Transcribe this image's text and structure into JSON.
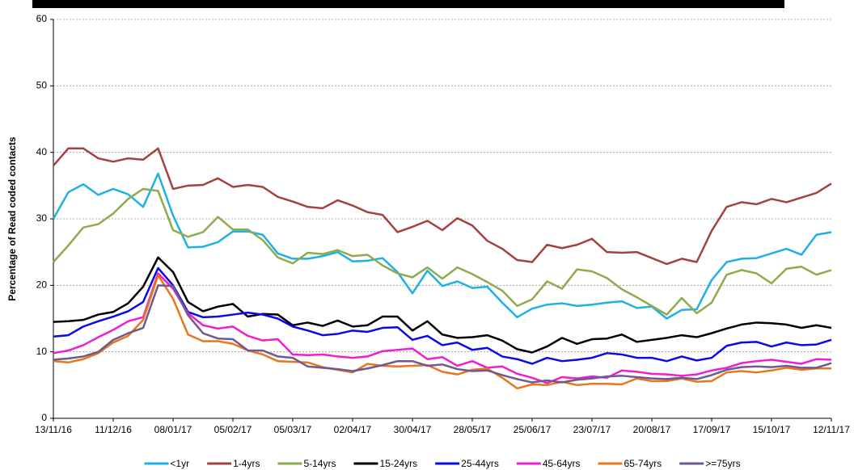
{
  "chart_data": {
    "type": "line",
    "y_label": "Percentage of Read coded contacts",
    "categories": [
      "13/11/16",
      null,
      null,
      null,
      "11/12/16",
      null,
      null,
      null,
      "08/01/17",
      null,
      null,
      null,
      "05/02/17",
      null,
      null,
      null,
      "05/03/17",
      null,
      null,
      null,
      "02/04/17",
      null,
      null,
      null,
      "30/04/17",
      null,
      null,
      null,
      "28/05/17",
      null,
      null,
      null,
      "25/06/17",
      null,
      null,
      null,
      "23/07/17",
      null,
      null,
      null,
      "20/08/17",
      null,
      null,
      null,
      "17/09/17",
      null,
      null,
      null,
      "15/10/17",
      null,
      null,
      null,
      "12/11/17"
    ],
    "ylim": [
      0,
      60
    ],
    "yticks": [
      0,
      10,
      20,
      30,
      40,
      50,
      60
    ],
    "grid": true,
    "legend": "bottom",
    "series": [
      {
        "name": "<1yr",
        "color": "#1fb0e6",
        "values": [
          30.0,
          34.0,
          35.2,
          33.6,
          34.5,
          33.7,
          31.8,
          36.8,
          30.5,
          25.7,
          25.8,
          26.5,
          28.1,
          28.1,
          27.6,
          24.8,
          24.0,
          24.0,
          24.4,
          25.0,
          23.6,
          23.7,
          24.1,
          22.0,
          18.8,
          22.2,
          19.9,
          20.6,
          19.6,
          19.8,
          17.4,
          15.2,
          16.5,
          17.1,
          17.3,
          16.9,
          17.1,
          17.4,
          17.6,
          16.6,
          16.8,
          15.0,
          16.3,
          16.4,
          20.8,
          23.5,
          24.0,
          24.1,
          24.8,
          25.5,
          24.6,
          27.6,
          28.0
        ]
      },
      {
        "name": "1-4yrs",
        "color": "#a3423e",
        "values": [
          38.0,
          40.6,
          40.6,
          39.1,
          38.6,
          39.1,
          38.9,
          40.6,
          34.5,
          35.0,
          35.1,
          36.1,
          34.8,
          35.1,
          34.8,
          33.3,
          32.6,
          31.8,
          31.6,
          32.8,
          32.0,
          31.0,
          30.6,
          28.0,
          28.8,
          29.7,
          28.3,
          30.1,
          29.0,
          26.7,
          25.5,
          23.8,
          23.5,
          26.1,
          25.6,
          26.1,
          27.0,
          25.0,
          24.9,
          25.0,
          24.1,
          23.2,
          24.0,
          23.5,
          28.2,
          31.8,
          32.5,
          32.2,
          33.0,
          32.5,
          33.2,
          33.9,
          35.3
        ]
      },
      {
        "name": "5-14yrs",
        "color": "#8eab4e",
        "values": [
          23.5,
          26.0,
          28.7,
          29.2,
          30.8,
          33.0,
          34.5,
          34.2,
          28.3,
          27.3,
          28.0,
          30.3,
          28.4,
          28.4,
          26.8,
          24.2,
          23.3,
          24.9,
          24.7,
          25.3,
          24.4,
          24.6,
          23.0,
          21.8,
          21.2,
          22.7,
          21.0,
          22.7,
          21.7,
          20.5,
          19.2,
          16.9,
          17.9,
          20.6,
          19.5,
          22.4,
          22.1,
          21.1,
          19.4,
          18.2,
          16.9,
          15.6,
          18.1,
          15.8,
          17.4,
          21.6,
          22.3,
          21.8,
          20.3,
          22.5,
          22.8,
          21.6,
          22.3
        ]
      },
      {
        "name": "15-24yrs",
        "color": "#000000",
        "values": [
          14.5,
          14.6,
          14.8,
          15.6,
          16.0,
          17.3,
          19.8,
          24.2,
          22.0,
          17.5,
          16.1,
          16.8,
          17.2,
          15.3,
          15.7,
          15.6,
          14.0,
          14.4,
          13.9,
          14.7,
          13.8,
          14.0,
          15.3,
          15.3,
          13.2,
          14.6,
          12.6,
          12.1,
          12.2,
          12.5,
          11.7,
          10.4,
          9.9,
          10.8,
          12.1,
          11.2,
          11.9,
          12.0,
          12.6,
          11.5,
          11.8,
          12.1,
          12.5,
          12.2,
          12.8,
          13.5,
          14.1,
          14.4,
          14.3,
          14.1,
          13.6,
          14.0,
          13.6
        ]
      },
      {
        "name": "25-44yrs",
        "color": "#0a0ae6",
        "values": [
          12.3,
          12.5,
          13.8,
          14.6,
          15.3,
          16.1,
          17.5,
          22.6,
          20.0,
          16.0,
          15.2,
          15.3,
          15.6,
          15.9,
          15.6,
          15.0,
          13.8,
          13.2,
          12.5,
          12.7,
          13.2,
          13.0,
          13.6,
          13.7,
          11.8,
          12.4,
          11.0,
          11.4,
          10.3,
          10.6,
          9.3,
          8.9,
          8.2,
          9.1,
          8.6,
          8.8,
          9.1,
          9.8,
          9.6,
          9.1,
          9.1,
          8.6,
          9.3,
          8.7,
          9.1,
          10.9,
          11.4,
          11.5,
          10.8,
          11.4,
          11.0,
          11.1,
          11.8
        ]
      },
      {
        "name": "45-64yrs",
        "color": "#f01ed2",
        "values": [
          9.8,
          10.2,
          11.0,
          12.2,
          13.3,
          14.6,
          15.2,
          21.8,
          19.5,
          15.8,
          14.0,
          13.5,
          13.8,
          12.4,
          11.7,
          11.9,
          9.6,
          9.5,
          9.6,
          9.3,
          9.1,
          9.3,
          10.1,
          10.3,
          10.5,
          8.9,
          9.2,
          7.9,
          8.6,
          7.6,
          7.8,
          6.7,
          6.1,
          5.3,
          6.2,
          6.0,
          6.3,
          6.1,
          7.2,
          7.0,
          6.7,
          6.6,
          6.4,
          6.6,
          7.2,
          7.6,
          8.3,
          8.6,
          8.8,
          8.5,
          8.2,
          8.9,
          8.8
        ]
      },
      {
        "name": "65-74yrs",
        "color": "#e8761e",
        "values": [
          8.6,
          8.4,
          8.9,
          9.8,
          11.4,
          12.4,
          14.8,
          21.5,
          18.0,
          12.6,
          11.6,
          11.6,
          11.2,
          10.2,
          9.6,
          8.6,
          8.5,
          8.4,
          7.7,
          7.3,
          6.9,
          8.2,
          7.9,
          7.8,
          7.9,
          8.0,
          7.0,
          6.6,
          7.3,
          7.5,
          6.1,
          4.5,
          5.1,
          5.0,
          5.5,
          5.0,
          5.2,
          5.2,
          5.1,
          6.0,
          5.6,
          5.6,
          6.0,
          5.5,
          5.6,
          6.9,
          7.1,
          6.9,
          7.2,
          7.6,
          7.3,
          7.5,
          7.5
        ]
      },
      {
        "name": ">=75yrs",
        "color": "#6e5a8c",
        "values": [
          8.8,
          9.0,
          9.3,
          10.0,
          11.8,
          12.8,
          13.6,
          20.0,
          19.9,
          15.5,
          12.8,
          12.0,
          11.9,
          10.2,
          10.2,
          9.3,
          9.1,
          7.8,
          7.6,
          7.4,
          7.1,
          7.5,
          8.0,
          8.6,
          8.6,
          7.9,
          8.1,
          7.4,
          7.1,
          7.2,
          6.5,
          5.9,
          5.4,
          5.7,
          5.4,
          5.8,
          6.0,
          6.3,
          6.4,
          6.2,
          6.0,
          5.9,
          6.1,
          5.9,
          6.5,
          7.3,
          7.7,
          7.8,
          7.7,
          7.9,
          7.6,
          7.6,
          8.3
        ]
      }
    ]
  }
}
